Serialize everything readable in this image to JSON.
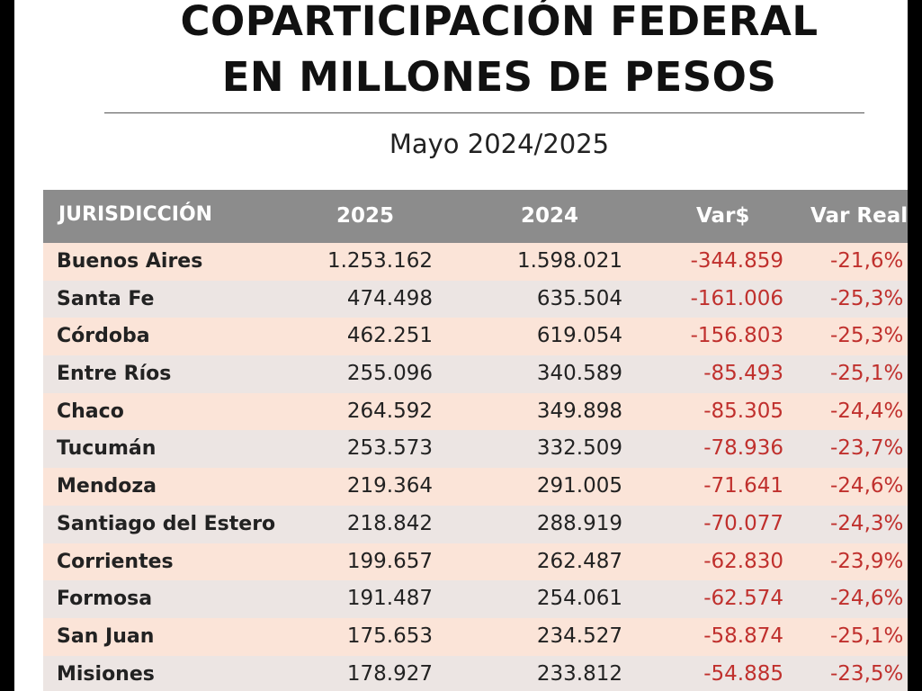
{
  "header": {
    "title_line1": "COPARTICIPACIÓN FEDERAL",
    "title_line2": "EN MILLONES DE PESOS",
    "subtitle": "Mayo 2024/2025"
  },
  "table": {
    "columns": [
      "JURISDICCIÓN",
      "2025",
      "2024",
      "Var$",
      "Var Real"
    ],
    "rows": [
      {
        "name": "Buenos Aires",
        "v2025": "1.253.162",
        "v2024": "1.598.021",
        "var": "-344.859",
        "real": "-21,6%"
      },
      {
        "name": "Santa Fe",
        "v2025": "474.498",
        "v2024": "635.504",
        "var": "-161.006",
        "real": "-25,3%"
      },
      {
        "name": "Córdoba",
        "v2025": "462.251",
        "v2024": "619.054",
        "var": "-156.803",
        "real": "-25,3%"
      },
      {
        "name": "Entre Ríos",
        "v2025": "255.096",
        "v2024": "340.589",
        "var": "-85.493",
        "real": "-25,1%"
      },
      {
        "name": "Chaco",
        "v2025": "264.592",
        "v2024": "349.898",
        "var": "-85.305",
        "real": "-24,4%"
      },
      {
        "name": "Tucumán",
        "v2025": "253.573",
        "v2024": "332.509",
        "var": "-78.936",
        "real": "-23,7%"
      },
      {
        "name": "Mendoza",
        "v2025": "219.364",
        "v2024": "291.005",
        "var": "-71.641",
        "real": "-24,6%"
      },
      {
        "name": "Santiago del Estero",
        "v2025": "218.842",
        "v2024": "288.919",
        "var": "-70.077",
        "real": "-24,3%"
      },
      {
        "name": "Corrientes",
        "v2025": "199.657",
        "v2024": "262.487",
        "var": "-62.830",
        "real": "-23,9%"
      },
      {
        "name": "Formosa",
        "v2025": "191.487",
        "v2024": "254.061",
        "var": "-62.574",
        "real": "-24,6%"
      },
      {
        "name": "San Juan",
        "v2025": "175.653",
        "v2024": "234.527",
        "var": "-58.874",
        "real": "-25,1%"
      },
      {
        "name": "Misiones",
        "v2025": "178.927",
        "v2024": "233.812",
        "var": "-54.885",
        "real": "-23,5%"
      }
    ]
  },
  "colors": {
    "header_bg": "#8c8c8c",
    "row_odd": "#fbe4d8",
    "row_even": "#ece5e3",
    "negative": "#c0302d"
  }
}
